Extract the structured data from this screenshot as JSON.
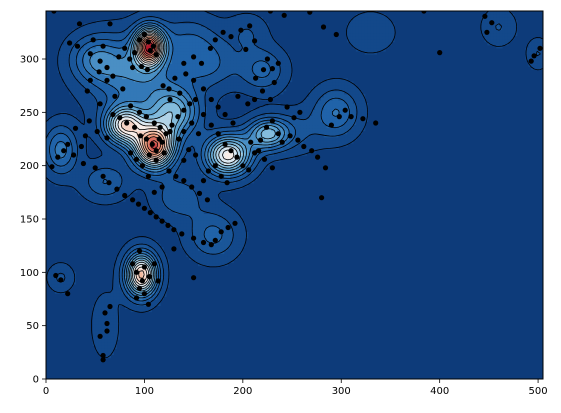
{
  "chart_data": {
    "type": "scatter",
    "subtype": "density-contour-with-scatter",
    "title": "",
    "xlabel": "",
    "ylabel": "",
    "xlim": [
      0,
      505
    ],
    "ylim": [
      0,
      345
    ],
    "xticks": [
      0,
      100,
      200,
      300,
      400,
      500
    ],
    "yticks": [
      0,
      50,
      100,
      150,
      200,
      250,
      300
    ],
    "x_tick_labels": [
      "0",
      "100",
      "200",
      "300",
      "400",
      "500"
    ],
    "y_tick_labels": [
      "0",
      "50",
      "100",
      "150",
      "200",
      "250",
      "300"
    ],
    "grid": false,
    "legend": "none",
    "colormap": "RdBu_r",
    "colors": {
      "background": "#0d3b7a",
      "low": "#2166ac",
      "mid_low": "#6aaed6",
      "mid": "#f7f7f7",
      "mid_high": "#f4a582",
      "high": "#b2182b",
      "points": "#000000"
    },
    "density_peaks": [
      {
        "x": 105,
        "y": 312,
        "sx": 10,
        "sy": 12,
        "w": 1.0
      },
      {
        "x": 110,
        "y": 218,
        "sx": 14,
        "sy": 14,
        "w": 1.0
      },
      {
        "x": 80,
        "y": 238,
        "sx": 14,
        "sy": 12,
        "w": 0.7
      },
      {
        "x": 185,
        "y": 210,
        "sx": 16,
        "sy": 13,
        "w": 0.72
      },
      {
        "x": 225,
        "y": 230,
        "sx": 14,
        "sy": 10,
        "w": 0.45
      },
      {
        "x": 97,
        "y": 98,
        "sx": 11,
        "sy": 14,
        "w": 0.85
      },
      {
        "x": 130,
        "y": 250,
        "sx": 18,
        "sy": 16,
        "w": 0.45
      },
      {
        "x": 50,
        "y": 300,
        "sx": 18,
        "sy": 15,
        "w": 0.25
      },
      {
        "x": 90,
        "y": 285,
        "sx": 30,
        "sy": 25,
        "w": 0.3
      },
      {
        "x": 165,
        "y": 295,
        "sx": 20,
        "sy": 16,
        "w": 0.18
      },
      {
        "x": 220,
        "y": 290,
        "sx": 16,
        "sy": 14,
        "w": 0.2
      },
      {
        "x": 15,
        "y": 215,
        "sx": 12,
        "sy": 16,
        "w": 0.28
      },
      {
        "x": 60,
        "y": 185,
        "sx": 16,
        "sy": 12,
        "w": 0.18
      },
      {
        "x": 295,
        "y": 250,
        "sx": 16,
        "sy": 16,
        "w": 0.25
      },
      {
        "x": 170,
        "y": 135,
        "sx": 18,
        "sy": 16,
        "w": 0.2
      },
      {
        "x": 135,
        "y": 170,
        "sx": 18,
        "sy": 14,
        "w": 0.16
      },
      {
        "x": 250,
        "y": 232,
        "sx": 20,
        "sy": 14,
        "w": 0.12
      },
      {
        "x": 15,
        "y": 95,
        "sx": 9,
        "sy": 9,
        "w": 0.12
      },
      {
        "x": 60,
        "y": 50,
        "sx": 10,
        "sy": 22,
        "w": 0.09
      },
      {
        "x": 460,
        "y": 330,
        "sx": 12,
        "sy": 12,
        "w": 0.11
      },
      {
        "x": 500,
        "y": 305,
        "sx": 8,
        "sy": 10,
        "w": 0.11
      },
      {
        "x": 145,
        "y": 320,
        "sx": 22,
        "sy": 16,
        "w": 0.14
      },
      {
        "x": 205,
        "y": 325,
        "sx": 14,
        "sy": 12,
        "w": 0.1
      },
      {
        "x": 330,
        "y": 325,
        "sx": 18,
        "sy": 14,
        "w": 0.09
      }
    ],
    "points": [
      [
        8,
        345
      ],
      [
        34,
        333
      ],
      [
        24,
        315
      ],
      [
        32,
        312
      ],
      [
        45,
        305
      ],
      [
        55,
        298
      ],
      [
        62,
        292
      ],
      [
        68,
        284
      ],
      [
        74,
        302
      ],
      [
        85,
        300
      ],
      [
        90,
        306
      ],
      [
        95,
        318
      ],
      [
        100,
        323
      ],
      [
        104,
        316
      ],
      [
        106,
        308
      ],
      [
        109,
        312
      ],
      [
        112,
        304
      ],
      [
        97,
        293
      ],
      [
        103,
        290
      ],
      [
        119,
        275
      ],
      [
        125,
        272
      ],
      [
        131,
        282
      ],
      [
        140,
        296
      ],
      [
        150,
        302
      ],
      [
        158,
        296
      ],
      [
        167,
        310
      ],
      [
        172,
        318
      ],
      [
        180,
        325
      ],
      [
        188,
        321
      ],
      [
        198,
        327
      ],
      [
        207,
        331
      ],
      [
        212,
        317
      ],
      [
        203,
        309
      ],
      [
        225,
        300
      ],
      [
        221,
        290
      ],
      [
        230,
        291
      ],
      [
        236,
        296
      ],
      [
        232,
        278
      ],
      [
        213,
        282
      ],
      [
        65,
        333
      ],
      [
        48,
        318
      ],
      [
        58,
        312
      ],
      [
        80,
        310
      ],
      [
        88,
        292
      ],
      [
        42,
        270
      ],
      [
        55,
        258
      ],
      [
        68,
        248
      ],
      [
        75,
        245
      ],
      [
        82,
        240
      ],
      [
        90,
        236
      ],
      [
        96,
        228
      ],
      [
        102,
        225
      ],
      [
        108,
        220
      ],
      [
        112,
        214
      ],
      [
        118,
        222
      ],
      [
        122,
        230
      ],
      [
        128,
        238
      ],
      [
        134,
        246
      ],
      [
        140,
        252
      ],
      [
        146,
        258
      ],
      [
        152,
        262
      ],
      [
        160,
        248
      ],
      [
        168,
        238
      ],
      [
        175,
        230
      ],
      [
        182,
        220
      ],
      [
        188,
        214
      ],
      [
        194,
        208
      ],
      [
        200,
        200
      ],
      [
        206,
        196
      ],
      [
        212,
        212
      ],
      [
        218,
        224
      ],
      [
        224,
        236
      ],
      [
        230,
        242
      ],
      [
        236,
        230
      ],
      [
        240,
        222
      ],
      [
        248,
        228
      ],
      [
        256,
        224
      ],
      [
        262,
        218
      ],
      [
        270,
        214
      ],
      [
        276,
        208
      ],
      [
        284,
        198
      ],
      [
        290,
        238
      ],
      [
        298,
        246
      ],
      [
        304,
        252
      ],
      [
        310,
        246
      ],
      [
        322,
        244
      ],
      [
        335,
        240
      ],
      [
        12,
        208
      ],
      [
        18,
        214
      ],
      [
        6,
        199
      ],
      [
        22,
        220
      ],
      [
        28,
        210
      ],
      [
        38,
        202
      ],
      [
        50,
        198
      ],
      [
        58,
        190
      ],
      [
        64,
        184
      ],
      [
        72,
        178
      ],
      [
        80,
        172
      ],
      [
        88,
        168
      ],
      [
        94,
        164
      ],
      [
        100,
        160
      ],
      [
        106,
        156
      ],
      [
        112,
        152
      ],
      [
        118,
        148
      ],
      [
        124,
        144
      ],
      [
        130,
        140
      ],
      [
        138,
        136
      ],
      [
        150,
        132
      ],
      [
        160,
        128
      ],
      [
        168,
        126
      ],
      [
        172,
        130
      ],
      [
        178,
        138
      ],
      [
        185,
        142
      ],
      [
        192,
        146
      ],
      [
        125,
        195
      ],
      [
        132,
        190
      ],
      [
        140,
        186
      ],
      [
        148,
        180
      ],
      [
        156,
        174
      ],
      [
        164,
        168
      ],
      [
        110,
        175
      ],
      [
        118,
        180
      ],
      [
        104,
        190
      ],
      [
        98,
        200
      ],
      [
        92,
        206
      ],
      [
        86,
        212
      ],
      [
        86,
        256
      ],
      [
        95,
        250
      ],
      [
        102,
        246
      ],
      [
        110,
        240
      ],
      [
        116,
        236
      ],
      [
        126,
        232
      ],
      [
        112,
        205
      ],
      [
        120,
        212
      ],
      [
        115,
        225
      ],
      [
        105,
        210
      ],
      [
        100,
        105
      ],
      [
        92,
        100
      ],
      [
        105,
        96
      ],
      [
        98,
        92
      ],
      [
        88,
        108
      ],
      [
        110,
        108
      ],
      [
        114,
        92
      ],
      [
        95,
        85
      ],
      [
        100,
        80
      ],
      [
        104,
        70
      ],
      [
        92,
        76
      ],
      [
        60,
        62
      ],
      [
        62,
        52
      ],
      [
        55,
        40
      ],
      [
        58,
        22
      ],
      [
        58,
        18
      ],
      [
        62,
        45
      ],
      [
        15,
        93
      ],
      [
        22,
        80
      ],
      [
        10,
        97
      ],
      [
        65,
        68
      ],
      [
        95,
        120
      ],
      [
        130,
        122
      ],
      [
        150,
        95
      ],
      [
        280,
        170
      ],
      [
        384,
        345
      ],
      [
        400,
        306
      ],
      [
        446,
        340
      ],
      [
        448,
        325
      ],
      [
        453,
        334
      ],
      [
        496,
        303
      ],
      [
        502,
        310
      ],
      [
        493,
        298
      ],
      [
        228,
        345
      ],
      [
        242,
        341
      ],
      [
        282,
        330
      ],
      [
        295,
        323
      ],
      [
        268,
        344
      ],
      [
        40,
        228
      ],
      [
        30,
        235
      ],
      [
        36,
        218
      ],
      [
        52,
        232
      ],
      [
        62,
        226
      ],
      [
        44,
        242
      ],
      [
        70,
        265
      ],
      [
        78,
        272
      ],
      [
        62,
        280
      ],
      [
        54,
        288
      ],
      [
        45,
        280
      ],
      [
        195,
        265
      ],
      [
        205,
        258
      ],
      [
        212,
        262
      ],
      [
        220,
        270
      ],
      [
        228,
        262
      ],
      [
        245,
        255
      ],
      [
        252,
        245
      ],
      [
        258,
        250
      ],
      [
        190,
        240
      ],
      [
        182,
        248
      ],
      [
        175,
        255
      ],
      [
        168,
        262
      ],
      [
        160,
        272
      ],
      [
        150,
        280
      ],
      [
        142,
        286
      ],
      [
        136,
        268
      ],
      [
        126,
        262
      ],
      [
        172,
        200
      ],
      [
        178,
        190
      ],
      [
        184,
        184
      ],
      [
        165,
        195
      ],
      [
        160,
        186
      ],
      [
        152,
        210
      ],
      [
        145,
        215
      ],
      [
        140,
        205
      ],
      [
        135,
        225
      ],
      [
        140,
        232
      ],
      [
        148,
        240
      ],
      [
        155,
        230
      ],
      [
        208,
        222
      ],
      [
        216,
        214
      ],
      [
        222,
        206
      ],
      [
        230,
        198
      ]
    ]
  }
}
